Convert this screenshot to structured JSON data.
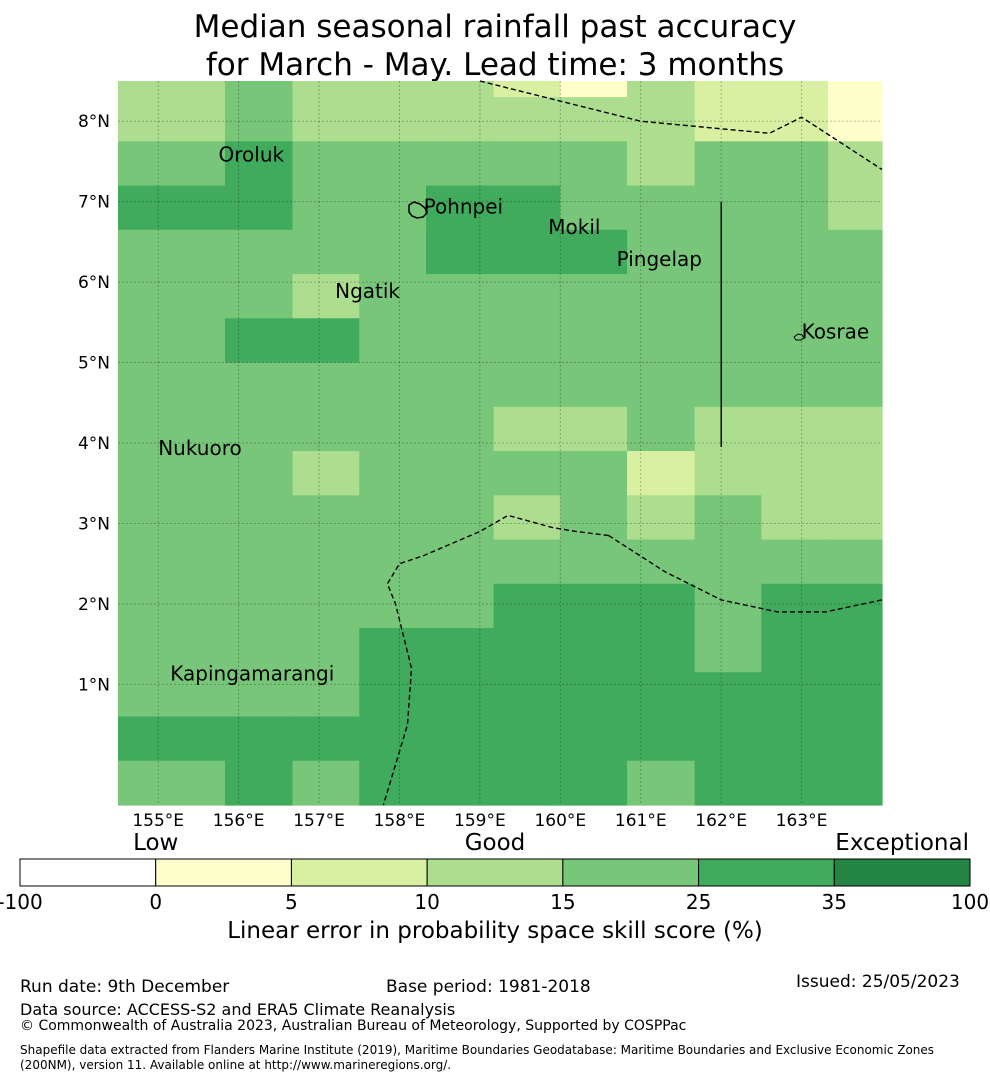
{
  "title": {
    "line1": "Median seasonal rainfall past accuracy",
    "line2": "for March - May. Lead time: 3 months"
  },
  "map": {
    "lon_min": 154.5,
    "lon_max": 164.0,
    "lat_min": -0.5,
    "lat_max": 8.5,
    "lat_ticks": [
      {
        "value": 8,
        "label": "8°N"
      },
      {
        "value": 7,
        "label": "7°N"
      },
      {
        "value": 6,
        "label": "6°N"
      },
      {
        "value": 5,
        "label": "5°N"
      },
      {
        "value": 4,
        "label": "4°N"
      },
      {
        "value": 3,
        "label": "3°N"
      },
      {
        "value": 2,
        "label": "2°N"
      },
      {
        "value": 1,
        "label": "1°N"
      }
    ],
    "lon_ticks": [
      {
        "value": 155,
        "label": "155°E"
      },
      {
        "value": 156,
        "label": "156°E"
      },
      {
        "value": 157,
        "label": "157°E"
      },
      {
        "value": 158,
        "label": "158°E"
      },
      {
        "value": 159,
        "label": "159°E"
      },
      {
        "value": 160,
        "label": "160°E"
      },
      {
        "value": 161,
        "label": "161°E"
      },
      {
        "value": 162,
        "label": "162°E"
      },
      {
        "value": 163,
        "label": "163°E"
      }
    ],
    "grid_columns": [
      154.5,
      155.83,
      156.67,
      157.5,
      158.33,
      159.17,
      160.0,
      160.83,
      161.67,
      162.5,
      163.33,
      164.0
    ],
    "grid_rows": [
      8.5,
      8.3,
      7.75,
      7.2,
      6.65,
      6.1,
      5.55,
      5.0,
      4.45,
      3.9,
      3.35,
      2.8,
      2.25,
      1.7,
      1.15,
      0.6,
      0.05,
      -0.5
    ],
    "skill_category_grid": [
      [
        3,
        4,
        3,
        3,
        3,
        2,
        1,
        3,
        2,
        2,
        1
      ],
      [
        3,
        4,
        3,
        3,
        3,
        3,
        3,
        3,
        2,
        2,
        1
      ],
      [
        4,
        5,
        4,
        4,
        4,
        4,
        4,
        3,
        4,
        4,
        3
      ],
      [
        5,
        5,
        4,
        4,
        5,
        5,
        4,
        4,
        4,
        4,
        3
      ],
      [
        4,
        4,
        4,
        4,
        5,
        5,
        5,
        4,
        4,
        4,
        4
      ],
      [
        4,
        4,
        3,
        4,
        4,
        4,
        4,
        4,
        4,
        4,
        4
      ],
      [
        4,
        5,
        5,
        4,
        4,
        4,
        4,
        4,
        4,
        4,
        4
      ],
      [
        4,
        4,
        4,
        4,
        4,
        4,
        4,
        4,
        4,
        4,
        4
      ],
      [
        4,
        4,
        4,
        4,
        4,
        3,
        3,
        4,
        3,
        3,
        3
      ],
      [
        4,
        4,
        3,
        4,
        4,
        4,
        4,
        2,
        3,
        3,
        3
      ],
      [
        4,
        4,
        4,
        4,
        4,
        3,
        4,
        3,
        4,
        3,
        3
      ],
      [
        4,
        4,
        4,
        4,
        4,
        4,
        4,
        4,
        4,
        4,
        4
      ],
      [
        4,
        4,
        4,
        4,
        4,
        5,
        5,
        5,
        4,
        5,
        5
      ],
      [
        4,
        4,
        4,
        5,
        5,
        5,
        5,
        5,
        4,
        5,
        5
      ],
      [
        4,
        4,
        4,
        5,
        5,
        5,
        5,
        5,
        5,
        5,
        5
      ],
      [
        5,
        5,
        5,
        5,
        5,
        5,
        5,
        5,
        5,
        5,
        5
      ],
      [
        4,
        5,
        4,
        5,
        5,
        5,
        5,
        4,
        5,
        5,
        5
      ]
    ],
    "places": [
      {
        "name": "Oroluk",
        "lon": 155.75,
        "lat": 7.5
      },
      {
        "name": "Pohnpei",
        "lon": 158.3,
        "lat": 6.85
      },
      {
        "name": "Mokil",
        "lon": 159.85,
        "lat": 6.6
      },
      {
        "name": "Pingelap",
        "lon": 160.7,
        "lat": 6.2
      },
      {
        "name": "Ngatik",
        "lon": 157.2,
        "lat": 5.8
      },
      {
        "name": "Kosrae",
        "lon": 163.0,
        "lat": 5.3
      },
      {
        "name": "Nukuoro",
        "lon": 155.0,
        "lat": 3.85
      },
      {
        "name": "Kapingamarangi",
        "lon": 155.15,
        "lat": 1.05
      }
    ],
    "boundary_lines": [
      {
        "style": "dashed",
        "points": [
          [
            159.0,
            8.5
          ],
          [
            161.0,
            8.0
          ],
          [
            162.6,
            7.85
          ],
          [
            163.0,
            8.05
          ],
          [
            164.0,
            7.4
          ]
        ]
      },
      {
        "style": "solid",
        "points": [
          [
            162.0,
            7.0
          ],
          [
            162.0,
            3.95
          ]
        ]
      },
      {
        "style": "dashed",
        "points": [
          [
            160.6,
            2.85
          ],
          [
            161.3,
            2.4
          ],
          [
            162.0,
            2.05
          ],
          [
            162.7,
            1.9
          ],
          [
            163.3,
            1.9
          ],
          [
            164.0,
            2.05
          ]
        ]
      },
      {
        "style": "dashed",
        "points": [
          [
            160.6,
            2.85
          ],
          [
            160.2,
            2.9
          ],
          [
            159.9,
            2.95
          ],
          [
            159.35,
            3.1
          ],
          [
            159.0,
            2.9
          ],
          [
            158.3,
            2.6
          ],
          [
            158.0,
            2.5
          ],
          [
            157.85,
            2.25
          ],
          [
            157.95,
            2.0
          ],
          [
            158.15,
            1.2
          ],
          [
            158.1,
            0.5
          ],
          [
            157.95,
            0.0
          ],
          [
            157.8,
            -0.5
          ]
        ]
      }
    ]
  },
  "legend": {
    "categories": [
      {
        "label": "Low",
        "position": "1"
      },
      {
        "label": "Good",
        "position": "3.5"
      },
      {
        "label": "Exceptional",
        "position": "6.5"
      }
    ],
    "colors": [
      "#ffffff",
      "#ffffcc",
      "#d9f0a3",
      "#addd8e",
      "#78c679",
      "#41ab5d",
      "#238443"
    ],
    "tick_labels": [
      "-100",
      "0",
      "5",
      "10",
      "15",
      "25",
      "35",
      "100"
    ],
    "title": "Linear error in probability space skill score (%)"
  },
  "footer": {
    "run_date": "Run date: 9th December",
    "base_period": "Base period: 1981-2018",
    "issued": "Issued: 25/05/2023",
    "data_source": "Data source: ACCESS-S2 and ERA5 Climate Reanalysis",
    "copyright": "© Commonwealth of Australia 2023, Australian Bureau of Meteorology, Supported by COSPPac",
    "shapefile_line1": "Shapefile data extracted from Flanders Marine Institute (2019), Maritime Boundaries Geodatabase: Maritime Boundaries and Exclusive Economic Zones",
    "shapefile_line2": "(200NM), version 11. Available online at http://www.marineregions.org/."
  }
}
